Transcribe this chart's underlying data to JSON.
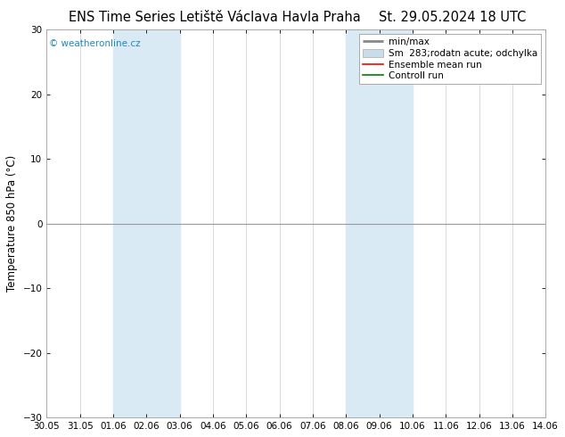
{
  "title_left": "ENS Time Series Letiště Václava Havla Praha",
  "title_right": "St. 29.05.2024 18 UTC",
  "ylabel": "Temperature 850 hPa (°C)",
  "watermark": "© weatheronline.cz",
  "ylim": [
    -30,
    30
  ],
  "yticks": [
    -30,
    -20,
    -10,
    0,
    10,
    20,
    30
  ],
  "x_labels": [
    "30.05",
    "31.05",
    "01.06",
    "02.06",
    "03.06",
    "04.06",
    "05.06",
    "06.06",
    "07.06",
    "08.06",
    "09.06",
    "10.06",
    "11.06",
    "12.06",
    "13.06",
    "14.06"
  ],
  "x_positions": [
    0,
    1,
    2,
    3,
    4,
    5,
    6,
    7,
    8,
    9,
    10,
    11,
    12,
    13,
    14,
    15
  ],
  "shade_bands": [
    {
      "xmin": 2,
      "xmax": 4
    },
    {
      "xmin": 9,
      "xmax": 11
    }
  ],
  "shade_color": "#daeaf5",
  "hline_y": 0,
  "hline_color": "#999999",
  "bg_color": "#ffffff",
  "plot_bg_color": "#ffffff",
  "grid_color": "#cccccc",
  "title_fontsize": 10.5,
  "tick_fontsize": 7.5,
  "ylabel_fontsize": 8.5,
  "watermark_color": "#2288bb",
  "watermark_fontsize": 7.5,
  "legend_fontsize": 7.5
}
